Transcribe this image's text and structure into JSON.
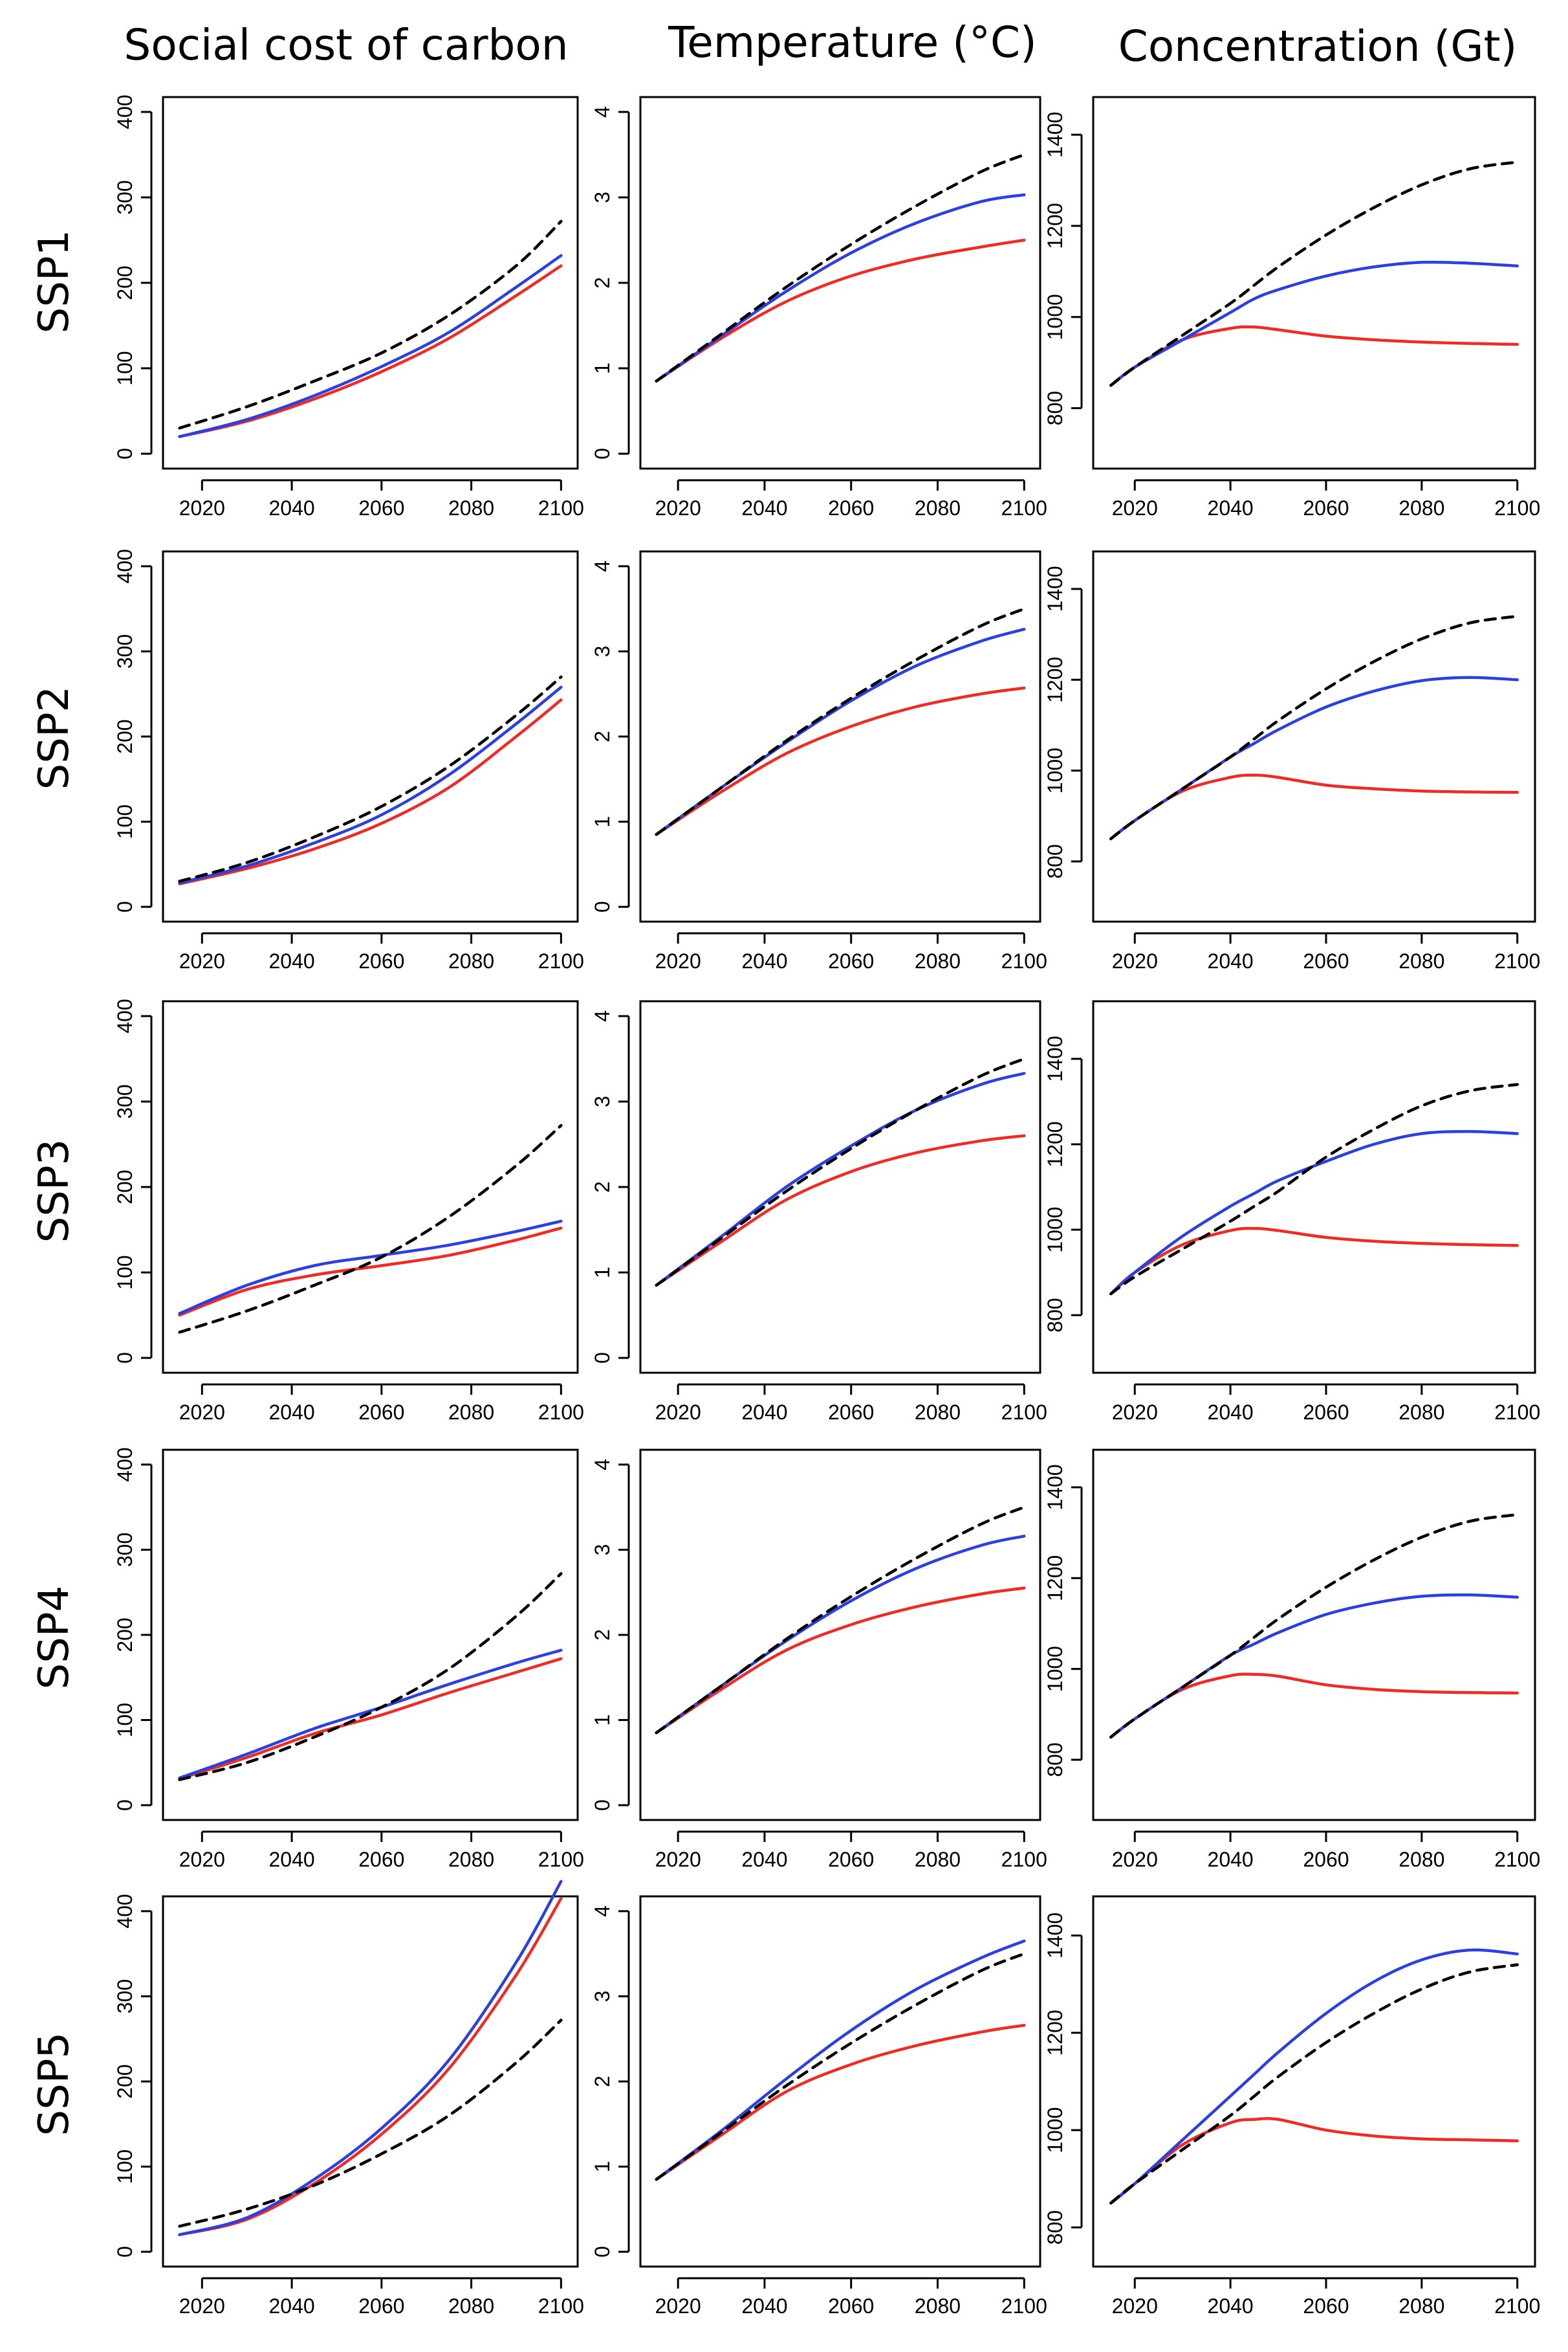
{
  "column_titles": [
    "Social cost of carbon",
    "Temperature (°C)",
    "Concentration (Gt)"
  ],
  "row_titles": [
    "SSP1",
    "SSP2",
    "SSP3",
    "SSP4",
    "SSP5"
  ],
  "colors": {
    "baseline": "#000000",
    "blue": "#2c3fe0",
    "red": "#ee2b24"
  },
  "chart_data": [
    {
      "type": "line",
      "row": "SSP1",
      "panel": "Social cost of carbon",
      "x": [
        2015,
        2030,
        2045,
        2060,
        2075,
        2090,
        2100
      ],
      "xlim": [
        2015,
        2100
      ],
      "xticks": [
        2020,
        2040,
        2060,
        2080,
        2100
      ],
      "ylim": [
        0,
        400
      ],
      "yticks": [
        0,
        100,
        200,
        300,
        400
      ],
      "series": [
        {
          "name": "baseline",
          "style": "dashed",
          "values": [
            30,
            55,
            85,
            118,
            162,
            220,
            272
          ]
        },
        {
          "name": "blue",
          "style": "solid",
          "values": [
            20,
            40,
            68,
            102,
            142,
            195,
            232
          ]
        },
        {
          "name": "red",
          "style": "solid",
          "values": [
            20,
            38,
            64,
            96,
            135,
            185,
            220
          ]
        }
      ]
    },
    {
      "type": "line",
      "row": "SSP1",
      "panel": "Temperature (°C)",
      "x": [
        2015,
        2030,
        2045,
        2060,
        2075,
        2090,
        2100
      ],
      "xlim": [
        2015,
        2100
      ],
      "xticks": [
        2020,
        2040,
        2060,
        2080,
        2100
      ],
      "ylim": [
        0,
        4
      ],
      "yticks": [
        0,
        1,
        2,
        3,
        4
      ],
      "series": [
        {
          "name": "baseline",
          "style": "dashed",
          "values": [
            0.85,
            1.4,
            1.95,
            2.45,
            2.9,
            3.3,
            3.5
          ]
        },
        {
          "name": "blue",
          "style": "solid",
          "values": [
            0.85,
            1.38,
            1.9,
            2.35,
            2.7,
            2.95,
            3.03
          ]
        },
        {
          "name": "red",
          "style": "solid",
          "values": [
            0.85,
            1.35,
            1.78,
            2.08,
            2.28,
            2.42,
            2.5
          ]
        }
      ]
    },
    {
      "type": "line",
      "row": "SSP1",
      "panel": "Concentration (Gt)",
      "x": [
        2015,
        2020,
        2030,
        2040,
        2045,
        2050,
        2060,
        2070,
        2080,
        2090,
        2100
      ],
      "xlim": [
        2015,
        2100
      ],
      "xticks": [
        2020,
        2040,
        2060,
        2080,
        2100
      ],
      "ylim": [
        700,
        1450
      ],
      "yticks": [
        800,
        1000,
        1200,
        1400
      ],
      "series": [
        {
          "name": "baseline",
          "style": "dashed",
          "values": [
            850,
            890,
            960,
            1030,
            1070,
            1110,
            1180,
            1240,
            1290,
            1325,
            1340
          ]
        },
        {
          "name": "blue",
          "style": "solid",
          "values": [
            850,
            890,
            950,
            1010,
            1040,
            1060,
            1090,
            1110,
            1120,
            1118,
            1112
          ]
        },
        {
          "name": "red",
          "style": "solid",
          "values": [
            850,
            890,
            950,
            975,
            978,
            972,
            958,
            950,
            945,
            942,
            940
          ]
        }
      ]
    },
    {
      "type": "line",
      "row": "SSP2",
      "panel": "Social cost of carbon",
      "x": [
        2015,
        2030,
        2045,
        2060,
        2075,
        2090,
        2100
      ],
      "xlim": [
        2015,
        2100
      ],
      "xticks": [
        2020,
        2040,
        2060,
        2080,
        2100
      ],
      "ylim": [
        0,
        400
      ],
      "yticks": [
        0,
        100,
        200,
        300,
        400
      ],
      "series": [
        {
          "name": "baseline",
          "style": "dashed",
          "values": [
            30,
            52,
            82,
            118,
            165,
            225,
            270
          ]
        },
        {
          "name": "blue",
          "style": "solid",
          "values": [
            28,
            48,
            75,
            108,
            155,
            215,
            258
          ]
        },
        {
          "name": "red",
          "style": "solid",
          "values": [
            27,
            45,
            68,
            98,
            140,
            200,
            243
          ]
        }
      ]
    },
    {
      "type": "line",
      "row": "SSP2",
      "panel": "Temperature (°C)",
      "x": [
        2015,
        2030,
        2045,
        2060,
        2075,
        2090,
        2100
      ],
      "xlim": [
        2015,
        2100
      ],
      "xticks": [
        2020,
        2040,
        2060,
        2080,
        2100
      ],
      "ylim": [
        0,
        4
      ],
      "yticks": [
        0,
        1,
        2,
        3,
        4
      ],
      "series": [
        {
          "name": "baseline",
          "style": "dashed",
          "values": [
            0.85,
            1.4,
            1.95,
            2.45,
            2.9,
            3.3,
            3.5
          ]
        },
        {
          "name": "blue",
          "style": "solid",
          "values": [
            0.85,
            1.4,
            1.93,
            2.42,
            2.83,
            3.12,
            3.26
          ]
        },
        {
          "name": "red",
          "style": "solid",
          "values": [
            0.85,
            1.35,
            1.8,
            2.12,
            2.35,
            2.5,
            2.57
          ]
        }
      ]
    },
    {
      "type": "line",
      "row": "SSP2",
      "panel": "Concentration (Gt)",
      "x": [
        2015,
        2020,
        2030,
        2040,
        2045,
        2050,
        2060,
        2070,
        2080,
        2090,
        2100
      ],
      "xlim": [
        2015,
        2100
      ],
      "xticks": [
        2020,
        2040,
        2060,
        2080,
        2100
      ],
      "ylim": [
        700,
        1450
      ],
      "yticks": [
        800,
        1000,
        1200,
        1400
      ],
      "series": [
        {
          "name": "baseline",
          "style": "dashed",
          "values": [
            850,
            890,
            960,
            1030,
            1070,
            1110,
            1180,
            1240,
            1290,
            1325,
            1340
          ]
        },
        {
          "name": "blue",
          "style": "solid",
          "values": [
            850,
            890,
            960,
            1030,
            1060,
            1090,
            1140,
            1175,
            1198,
            1205,
            1200
          ]
        },
        {
          "name": "red",
          "style": "solid",
          "values": [
            850,
            890,
            955,
            985,
            990,
            985,
            968,
            960,
            955,
            953,
            952
          ]
        }
      ]
    },
    {
      "type": "line",
      "row": "SSP3",
      "panel": "Social cost of carbon",
      "x": [
        2015,
        2030,
        2045,
        2060,
        2075,
        2090,
        2100
      ],
      "xlim": [
        2015,
        2100
      ],
      "xticks": [
        2020,
        2040,
        2060,
        2080,
        2100
      ],
      "ylim": [
        0,
        400
      ],
      "yticks": [
        0,
        100,
        200,
        300,
        400
      ],
      "series": [
        {
          "name": "baseline",
          "style": "dashed",
          "values": [
            30,
            55,
            85,
            118,
            165,
            225,
            272
          ]
        },
        {
          "name": "blue",
          "style": "solid",
          "values": [
            52,
            85,
            108,
            120,
            132,
            148,
            160
          ]
        },
        {
          "name": "red",
          "style": "solid",
          "values": [
            50,
            80,
            97,
            108,
            120,
            138,
            152
          ]
        }
      ]
    },
    {
      "type": "line",
      "row": "SSP3",
      "panel": "Temperature (°C)",
      "x": [
        2015,
        2030,
        2045,
        2060,
        2075,
        2090,
        2100
      ],
      "xlim": [
        2015,
        2100
      ],
      "xticks": [
        2020,
        2040,
        2060,
        2080,
        2100
      ],
      "ylim": [
        0,
        4
      ],
      "yticks": [
        0,
        1,
        2,
        3,
        4
      ],
      "series": [
        {
          "name": "baseline",
          "style": "dashed",
          "values": [
            0.85,
            1.4,
            1.95,
            2.45,
            2.9,
            3.3,
            3.5
          ]
        },
        {
          "name": "blue",
          "style": "solid",
          "values": [
            0.85,
            1.42,
            2.0,
            2.48,
            2.9,
            3.2,
            3.33
          ]
        },
        {
          "name": "red",
          "style": "solid",
          "values": [
            0.85,
            1.36,
            1.85,
            2.18,
            2.4,
            2.54,
            2.6
          ]
        }
      ]
    },
    {
      "type": "line",
      "row": "SSP3",
      "panel": "Concentration (Gt)",
      "x": [
        2015,
        2020,
        2030,
        2040,
        2045,
        2050,
        2060,
        2070,
        2080,
        2090,
        2100
      ],
      "xlim": [
        2015,
        2100
      ],
      "xticks": [
        2020,
        2040,
        2060,
        2080,
        2100
      ],
      "ylim": [
        700,
        1500
      ],
      "yticks": [
        800,
        1000,
        1200,
        1400
      ],
      "series": [
        {
          "name": "baseline",
          "style": "dashed",
          "values": [
            850,
            890,
            955,
            1020,
            1055,
            1090,
            1170,
            1235,
            1290,
            1325,
            1340
          ]
        },
        {
          "name": "blue",
          "style": "solid",
          "values": [
            850,
            900,
            985,
            1055,
            1085,
            1115,
            1160,
            1200,
            1225,
            1230,
            1225
          ]
        },
        {
          "name": "red",
          "style": "solid",
          "values": [
            850,
            900,
            965,
            998,
            1003,
            998,
            982,
            973,
            968,
            965,
            963
          ]
        }
      ]
    },
    {
      "type": "line",
      "row": "SSP4",
      "panel": "Social cost of carbon",
      "x": [
        2015,
        2030,
        2045,
        2060,
        2075,
        2090,
        2100
      ],
      "xlim": [
        2015,
        2100
      ],
      "xticks": [
        2020,
        2040,
        2060,
        2080,
        2100
      ],
      "ylim": [
        0,
        400
      ],
      "yticks": [
        0,
        100,
        200,
        300,
        400
      ],
      "series": [
        {
          "name": "baseline",
          "style": "dashed",
          "values": [
            30,
            50,
            80,
            115,
            160,
            222,
            272
          ]
        },
        {
          "name": "blue",
          "style": "solid",
          "values": [
            32,
            60,
            90,
            115,
            142,
            167,
            182
          ]
        },
        {
          "name": "red",
          "style": "solid",
          "values": [
            31,
            56,
            84,
            106,
            132,
            156,
            172
          ]
        }
      ]
    },
    {
      "type": "line",
      "row": "SSP4",
      "panel": "Temperature (°C)",
      "x": [
        2015,
        2030,
        2045,
        2060,
        2075,
        2090,
        2100
      ],
      "xlim": [
        2015,
        2100
      ],
      "xticks": [
        2020,
        2040,
        2060,
        2080,
        2100
      ],
      "ylim": [
        0,
        4
      ],
      "yticks": [
        0,
        1,
        2,
        3,
        4
      ],
      "series": [
        {
          "name": "baseline",
          "style": "dashed",
          "values": [
            0.85,
            1.4,
            1.95,
            2.45,
            2.9,
            3.3,
            3.5
          ]
        },
        {
          "name": "blue",
          "style": "solid",
          "values": [
            0.85,
            1.4,
            1.93,
            2.4,
            2.78,
            3.05,
            3.16
          ]
        },
        {
          "name": "red",
          "style": "solid",
          "values": [
            0.85,
            1.36,
            1.82,
            2.12,
            2.33,
            2.48,
            2.55
          ]
        }
      ]
    },
    {
      "type": "line",
      "row": "SSP4",
      "panel": "Concentration (Gt)",
      "x": [
        2015,
        2020,
        2030,
        2040,
        2045,
        2050,
        2060,
        2070,
        2080,
        2090,
        2100
      ],
      "xlim": [
        2015,
        2100
      ],
      "xticks": [
        2020,
        2040,
        2060,
        2080,
        2100
      ],
      "ylim": [
        700,
        1450
      ],
      "yticks": [
        800,
        1000,
        1200,
        1400
      ],
      "series": [
        {
          "name": "baseline",
          "style": "dashed",
          "values": [
            850,
            890,
            960,
            1030,
            1070,
            1110,
            1180,
            1240,
            1290,
            1325,
            1340
          ]
        },
        {
          "name": "blue",
          "style": "solid",
          "values": [
            850,
            890,
            960,
            1030,
            1055,
            1080,
            1120,
            1145,
            1160,
            1163,
            1158
          ]
        },
        {
          "name": "red",
          "style": "solid",
          "values": [
            850,
            890,
            955,
            985,
            988,
            984,
            965,
            955,
            950,
            948,
            947
          ]
        }
      ]
    },
    {
      "type": "line",
      "row": "SSP5",
      "panel": "Social cost of carbon",
      "x": [
        2015,
        2030,
        2045,
        2060,
        2075,
        2090,
        2100
      ],
      "xlim": [
        2015,
        2100
      ],
      "xticks": [
        2020,
        2040,
        2060,
        2080,
        2100
      ],
      "ylim": [
        0,
        400
      ],
      "yticks": [
        0,
        100,
        200,
        300,
        400
      ],
      "series": [
        {
          "name": "baseline",
          "style": "dashed",
          "values": [
            30,
            50,
            78,
            115,
            160,
            222,
            272
          ]
        },
        {
          "name": "blue",
          "style": "solid",
          "values": [
            20,
            40,
            85,
            145,
            225,
            340,
            435
          ]
        },
        {
          "name": "red",
          "style": "solid",
          "values": [
            20,
            38,
            80,
            138,
            215,
            325,
            415
          ]
        }
      ]
    },
    {
      "type": "line",
      "row": "SSP5",
      "panel": "Temperature (°C)",
      "x": [
        2015,
        2030,
        2045,
        2060,
        2075,
        2090,
        2100
      ],
      "xlim": [
        2015,
        2100
      ],
      "xticks": [
        2020,
        2040,
        2060,
        2080,
        2100
      ],
      "ylim": [
        0,
        4
      ],
      "yticks": [
        0,
        1,
        2,
        3,
        4
      ],
      "series": [
        {
          "name": "baseline",
          "style": "dashed",
          "values": [
            0.85,
            1.4,
            1.95,
            2.45,
            2.9,
            3.3,
            3.5
          ]
        },
        {
          "name": "blue",
          "style": "solid",
          "values": [
            0.85,
            1.42,
            2.03,
            2.6,
            3.08,
            3.45,
            3.65
          ]
        },
        {
          "name": "red",
          "style": "solid",
          "values": [
            0.85,
            1.37,
            1.88,
            2.2,
            2.42,
            2.58,
            2.66
          ]
        }
      ]
    },
    {
      "type": "line",
      "row": "SSP5",
      "panel": "Concentration (Gt)",
      "x": [
        2015,
        2020,
        2030,
        2040,
        2045,
        2050,
        2060,
        2070,
        2080,
        2090,
        2100
      ],
      "xlim": [
        2015,
        2100
      ],
      "xticks": [
        2020,
        2040,
        2060,
        2080,
        2100
      ],
      "ylim": [
        750,
        1450
      ],
      "yticks": [
        800,
        1000,
        1200,
        1400
      ],
      "series": [
        {
          "name": "baseline",
          "style": "dashed",
          "values": [
            850,
            890,
            960,
            1030,
            1070,
            1110,
            1180,
            1240,
            1290,
            1325,
            1340
          ]
        },
        {
          "name": "blue",
          "style": "solid",
          "values": [
            850,
            890,
            980,
            1070,
            1115,
            1160,
            1240,
            1305,
            1350,
            1370,
            1362
          ]
        },
        {
          "name": "red",
          "style": "solid",
          "values": [
            850,
            890,
            970,
            1015,
            1022,
            1022,
            1000,
            988,
            982,
            980,
            978
          ]
        }
      ]
    }
  ]
}
